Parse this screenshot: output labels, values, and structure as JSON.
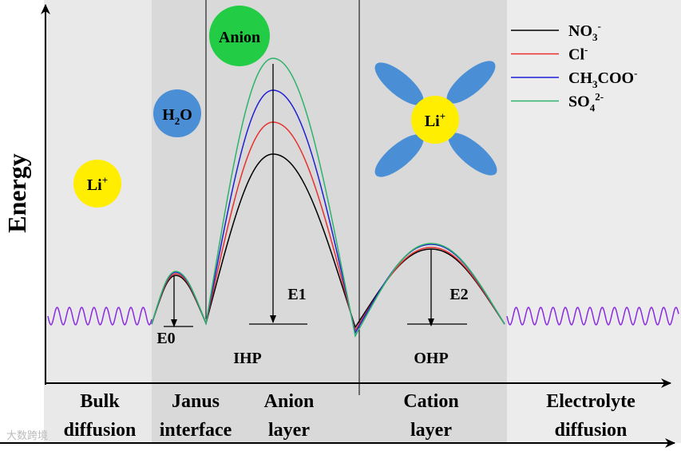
{
  "axis_label": "Energy",
  "particles": {
    "li_bulk": {
      "base": "Li",
      "sup": "+"
    },
    "water": {
      "base": "H",
      "sub": "2",
      "tail": "O"
    },
    "anion": "Anion",
    "li_complex": {
      "base": "Li",
      "sup": "+"
    }
  },
  "legend": [
    {
      "base": "NO",
      "sub": "3",
      "sup": "-",
      "color": "#000000"
    },
    {
      "base": "Cl",
      "sup": "-",
      "color": "#e8312f"
    },
    {
      "base": "CH",
      "sub": "3",
      "tail": "COO",
      "sup": "-",
      "color": "#1f1fd6"
    },
    {
      "base": "SO",
      "sub": "4",
      "sup": "2-",
      "color": "#2db36b"
    }
  ],
  "energy_labels": [
    "E0",
    "E1",
    "E2"
  ],
  "layers": [
    "IHP",
    "OHP"
  ],
  "regions": [
    [
      "Bulk",
      "diffusion"
    ],
    [
      "Janus",
      "interface"
    ],
    [
      "Anion",
      "layer"
    ],
    [
      "Cation",
      "layer"
    ],
    [
      "Electrolyte",
      "diffusion"
    ]
  ],
  "watermark": "大数跨境"
}
